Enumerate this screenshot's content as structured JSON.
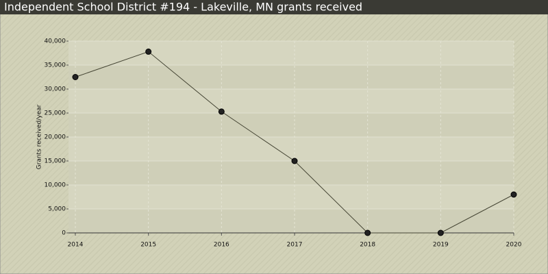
{
  "chart_data": {
    "type": "line",
    "title": "Independent School District #194 - Lakeville, MN grants received",
    "y_label": "Grants received/year",
    "x": [
      2014,
      2015,
      2016,
      2017,
      2018,
      2019,
      2020
    ],
    "series": [
      {
        "name": "Grants received",
        "color": "#444433",
        "values": [
          32500,
          37800,
          25300,
          15000,
          0,
          0,
          8000
        ]
      }
    ],
    "xlim": [
      2014,
      2020
    ],
    "xticks": [
      2014,
      2015,
      2016,
      2017,
      2018,
      2019,
      2020
    ],
    "ylim": [
      0,
      40000
    ],
    "yticks": [
      0,
      {
        "value": 5000,
        "label": "5,000"
      },
      {
        "value": 10000,
        "label": "10,000"
      },
      {
        "value": 15000,
        "label": "15,000"
      },
      {
        "value": 20000,
        "label": "20,000"
      },
      {
        "value": 25000,
        "label": "25,000"
      },
      {
        "value": 30000,
        "label": "30,000"
      },
      {
        "value": 35000,
        "label": "35,000"
      },
      {
        "value": 40000,
        "label": "40,000"
      }
    ],
    "grid": true
  }
}
